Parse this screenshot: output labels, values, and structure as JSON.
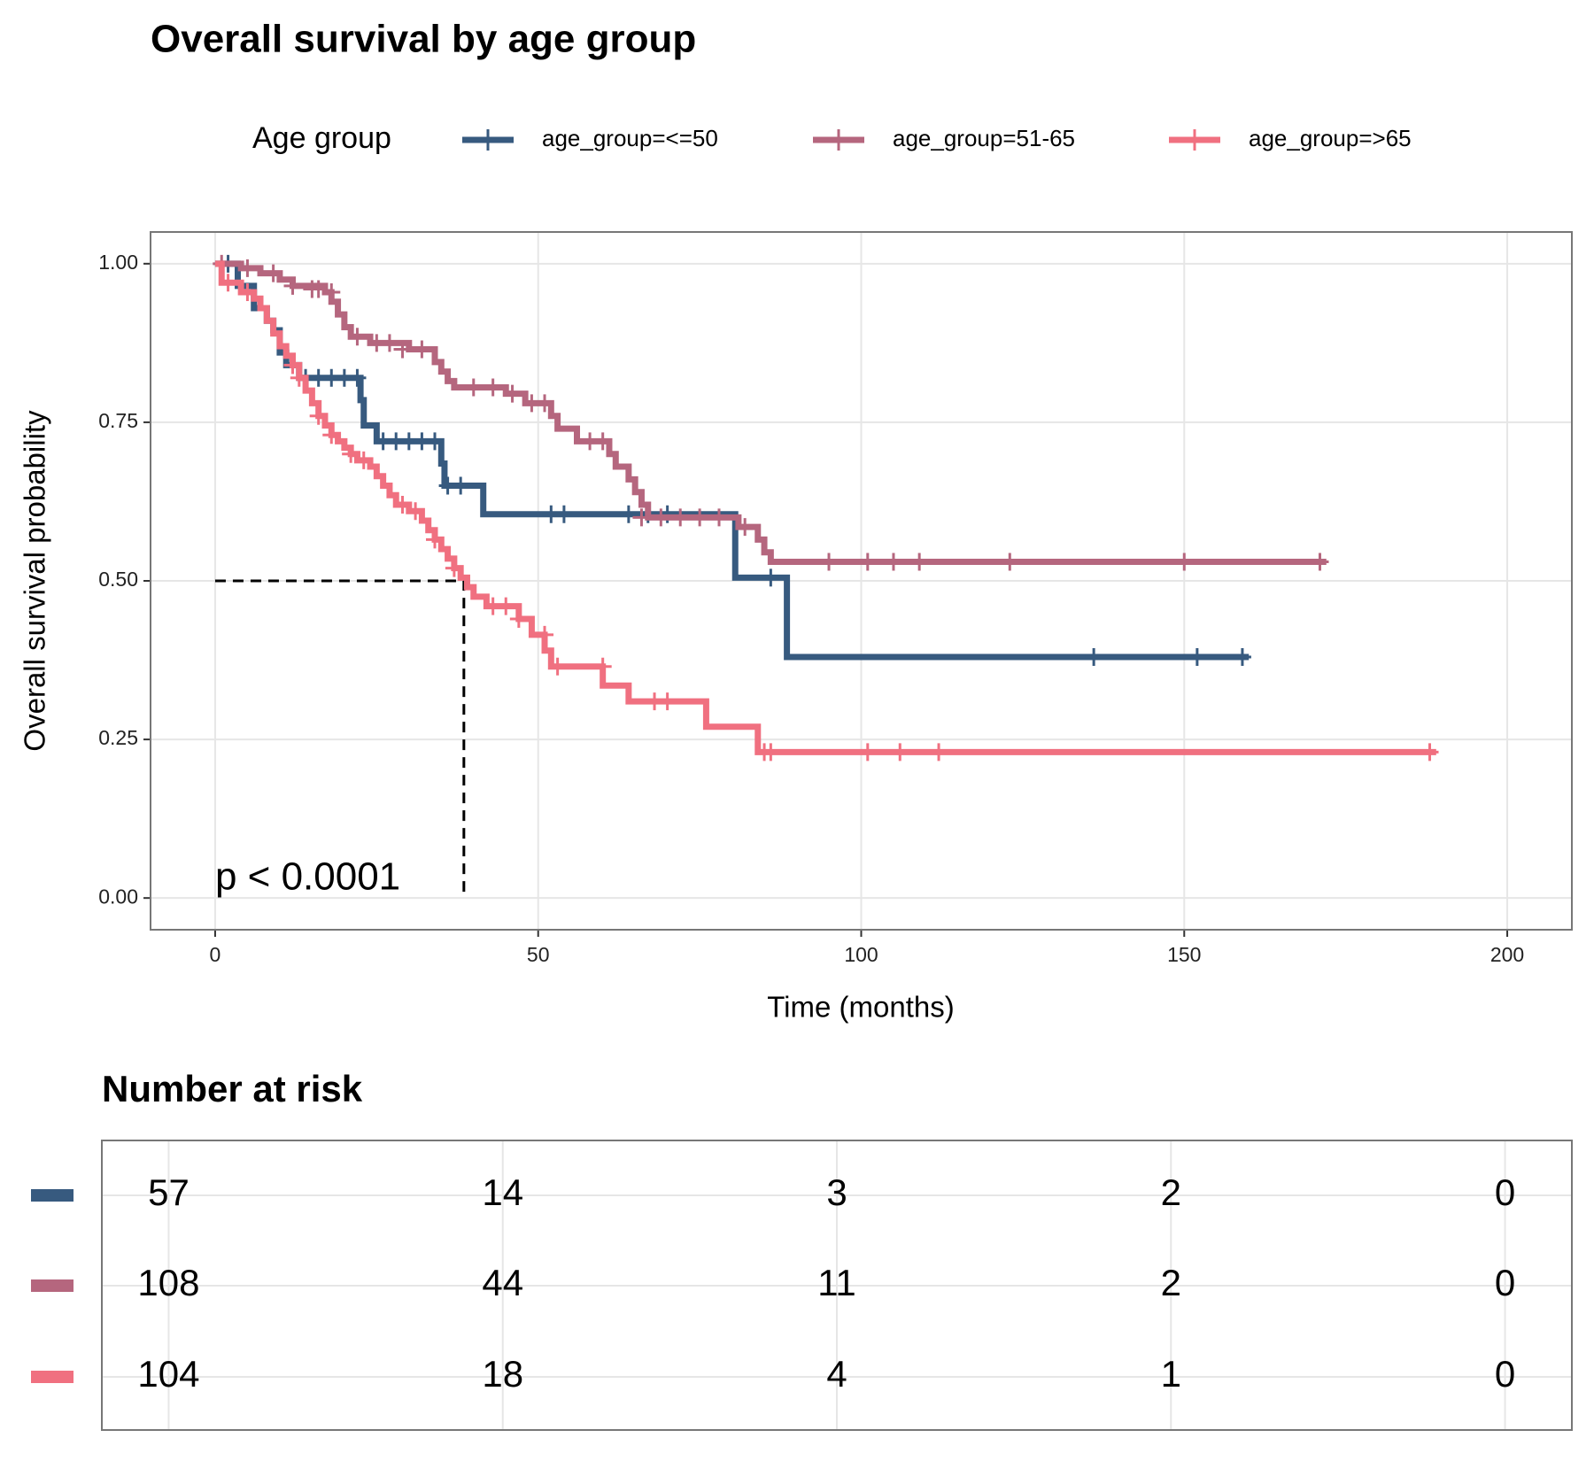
{
  "chart_data": {
    "type": "survival",
    "title": "Overall survival by age group",
    "xlabel": "Time (months)",
    "ylabel": "Overall survival probability",
    "legend_title": "Age group",
    "annotation": "p < 0.0001",
    "xlim": [
      -10,
      210
    ],
    "ylim": [
      -0.05,
      1.05
    ],
    "xticks": [
      0,
      50,
      100,
      150,
      200
    ],
    "yticks": [
      {
        "value": 0,
        "label": "0.00"
      },
      {
        "value": 0.25,
        "label": "0.25"
      },
      {
        "value": 0.5,
        "label": "0.50"
      },
      {
        "value": 0.75,
        "label": "0.75"
      },
      {
        "value": 1,
        "label": "1.00"
      }
    ],
    "grid": true,
    "median_line": {
      "x": 38.5,
      "y": 0.5
    },
    "series": [
      {
        "name": "age_group=<=50",
        "color": "#375a7f",
        "x": [
          0,
          3.5,
          6,
          8,
          9,
          10,
          11,
          13,
          22.5,
          23,
          25,
          35,
          35.5,
          41.5,
          80.5,
          88.5,
          160
        ],
        "values": [
          1,
          0.965,
          0.93,
          0.91,
          0.895,
          0.86,
          0.84,
          0.82,
          0.785,
          0.745,
          0.72,
          0.685,
          0.65,
          0.605,
          0.505,
          0.38,
          0.38
        ],
        "censor_x": [
          2,
          14,
          16,
          18,
          20,
          22,
          26,
          28,
          30,
          32,
          34,
          36,
          38,
          52,
          54,
          64,
          67,
          70,
          86,
          136,
          152,
          159
        ],
        "censor_y": [
          1,
          0.82,
          0.82,
          0.82,
          0.82,
          0.82,
          0.72,
          0.72,
          0.72,
          0.72,
          0.72,
          0.65,
          0.65,
          0.605,
          0.605,
          0.605,
          0.605,
          0.605,
          0.505,
          0.38,
          0.38,
          0.38
        ]
      },
      {
        "name": "age_group=51-65",
        "color": "#b5667e",
        "x": [
          0,
          4,
          7,
          10,
          12,
          17,
          18,
          19,
          20,
          21,
          24,
          30,
          34,
          35,
          36,
          37,
          45,
          48,
          52,
          53,
          56,
          61,
          62,
          64,
          65,
          66,
          67,
          81,
          84,
          85,
          86,
          172
        ],
        "values": [
          1,
          0.993,
          0.985,
          0.975,
          0.965,
          0.955,
          0.94,
          0.92,
          0.9,
          0.885,
          0.875,
          0.865,
          0.845,
          0.83,
          0.815,
          0.805,
          0.795,
          0.78,
          0.76,
          0.74,
          0.72,
          0.7,
          0.68,
          0.66,
          0.64,
          0.62,
          0.6,
          0.585,
          0.565,
          0.545,
          0.53,
          0.53
        ],
        "censor_x": [
          1,
          5,
          9,
          12,
          15,
          16,
          18,
          22,
          25,
          27,
          29,
          32,
          40,
          43,
          46,
          49,
          51,
          58,
          60,
          66,
          69,
          72,
          75,
          78,
          82,
          95,
          101,
          105,
          109,
          123,
          150,
          171
        ],
        "censor_y": [
          1,
          0.993,
          0.985,
          0.965,
          0.96,
          0.96,
          0.955,
          0.885,
          0.875,
          0.875,
          0.865,
          0.865,
          0.805,
          0.805,
          0.795,
          0.78,
          0.78,
          0.72,
          0.72,
          0.6,
          0.6,
          0.6,
          0.6,
          0.6,
          0.585,
          0.53,
          0.53,
          0.53,
          0.53,
          0.53,
          0.53,
          0.53
        ]
      },
      {
        "name": "age_group=>65",
        "color": "#f07080",
        "x": [
          0,
          1,
          4,
          6,
          7,
          8,
          9,
          10,
          11,
          12,
          13,
          14,
          15,
          16,
          17,
          18,
          19,
          20,
          21,
          22,
          24,
          25,
          26,
          27,
          28,
          30,
          32,
          33,
          34,
          35,
          36,
          37,
          38,
          39,
          40,
          42,
          47,
          49,
          51,
          52,
          60,
          64,
          76,
          84,
          189
        ],
        "values": [
          1,
          0.97,
          0.955,
          0.945,
          0.93,
          0.91,
          0.89,
          0.87,
          0.855,
          0.84,
          0.82,
          0.8,
          0.78,
          0.76,
          0.745,
          0.73,
          0.72,
          0.71,
          0.7,
          0.69,
          0.68,
          0.665,
          0.65,
          0.635,
          0.62,
          0.61,
          0.595,
          0.58,
          0.565,
          0.55,
          0.535,
          0.52,
          0.505,
          0.49,
          0.475,
          0.46,
          0.44,
          0.415,
          0.39,
          0.365,
          0.335,
          0.31,
          0.27,
          0.23,
          0.23
        ],
        "censor_x": [
          2,
          5,
          12,
          13,
          16,
          18,
          21,
          23,
          29,
          31,
          34,
          37,
          43,
          45,
          47,
          51,
          53,
          60,
          68,
          70,
          85,
          86,
          101,
          106,
          112,
          188
        ],
        "censor_y": [
          0.97,
          0.955,
          0.84,
          0.82,
          0.76,
          0.73,
          0.7,
          0.69,
          0.62,
          0.61,
          0.565,
          0.52,
          0.46,
          0.46,
          0.44,
          0.415,
          0.365,
          0.365,
          0.31,
          0.31,
          0.23,
          0.23,
          0.23,
          0.23,
          0.23,
          0.23
        ]
      }
    ],
    "risk_table": {
      "title": "Number at risk",
      "rows": [
        [
          57,
          14,
          3,
          2,
          0
        ],
        [
          108,
          44,
          11,
          2,
          0
        ],
        [
          104,
          18,
          4,
          1,
          0
        ]
      ]
    }
  }
}
